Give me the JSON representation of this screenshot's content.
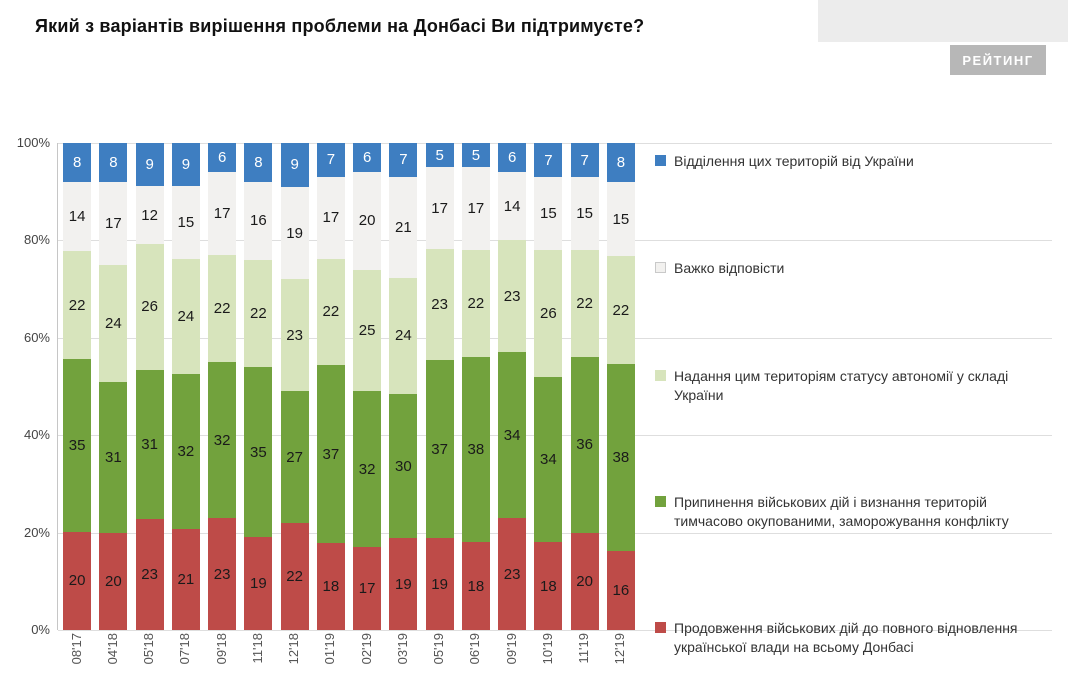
{
  "page": {
    "logo_text": "РЕЙТИНГ"
  },
  "chart_data": {
    "type": "bar",
    "stacked": true,
    "title": "Який з варіантів вирішення проблеми на Донбасі Ви підтримуєте?",
    "categories": [
      "08'17",
      "04'18",
      "05'18",
      "07'18",
      "09'18",
      "11'18",
      "12'18",
      "01'19",
      "02'19",
      "03'19",
      "05'19",
      "06'19",
      "09'19",
      "10'19",
      "11'19",
      "12'19"
    ],
    "series": [
      {
        "name": "Продовження військових дій до повного відновлення української влади на всьому Донбасі",
        "color": "#BE4B48",
        "label_color": "#1a1a1a",
        "values": [
          20,
          20,
          23,
          21,
          23,
          19,
          22,
          18,
          17,
          19,
          19,
          18,
          23,
          18,
          20,
          16
        ]
      },
      {
        "name": "Припинення військових дій і визнання територій тимчасово окупованими, заморожування конфлікту",
        "color": "#72A23D",
        "label_color": "#1a1a1a",
        "values": [
          35,
          31,
          31,
          32,
          32,
          35,
          27,
          37,
          32,
          30,
          37,
          38,
          34,
          34,
          36,
          38
        ]
      },
      {
        "name": "Надання цим територіям статусу автономії у складі України",
        "color": "#D7E4BC",
        "label_color": "#1a1a1a",
        "values": [
          22,
          24,
          26,
          24,
          22,
          22,
          23,
          22,
          25,
          24,
          23,
          22,
          23,
          26,
          22,
          22
        ]
      },
      {
        "name": "Важко відповісти",
        "color": "#F2F1EF",
        "label_color": "#1a1a1a",
        "swatch_border": true,
        "values": [
          14,
          17,
          12,
          15,
          17,
          16,
          19,
          17,
          20,
          21,
          17,
          17,
          14,
          15,
          15,
          15
        ]
      },
      {
        "name": "Відділення цих територій від України",
        "color": "#3E7EC1",
        "label_color": "#ffffff",
        "values": [
          8,
          8,
          9,
          9,
          6,
          8,
          9,
          7,
          6,
          7,
          5,
          5,
          6,
          7,
          7,
          8
        ]
      }
    ],
    "y_ticks": [
      "0%",
      "20%",
      "40%",
      "60%",
      "80%",
      "100%"
    ],
    "ylim": [
      0,
      100
    ],
    "grid": true,
    "legend_position": "right"
  }
}
